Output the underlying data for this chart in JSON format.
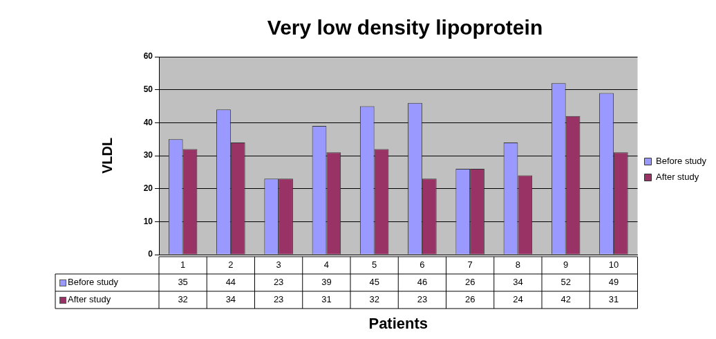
{
  "chart_data": {
    "type": "bar",
    "title": "Very low density lipoprotein",
    "xlabel": "Patients",
    "ylabel": "VLDL",
    "categories": [
      "1",
      "2",
      "3",
      "4",
      "5",
      "6",
      "7",
      "8",
      "9",
      "10"
    ],
    "series": [
      {
        "name": "Before study",
        "color": "#9999ff",
        "values": [
          35,
          44,
          23,
          39,
          45,
          46,
          26,
          34,
          52,
          49
        ]
      },
      {
        "name": "After study",
        "color": "#993366",
        "values": [
          32,
          34,
          23,
          31,
          32,
          23,
          26,
          24,
          42,
          31
        ]
      }
    ],
    "ylim": [
      0,
      60
    ],
    "yticks": [
      0,
      10,
      20,
      30,
      40,
      50,
      60
    ],
    "grid": "y",
    "legend": "right",
    "data_labels": true
  }
}
